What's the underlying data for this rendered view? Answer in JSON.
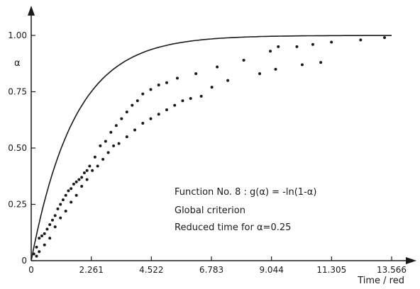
{
  "chart_data": {
    "type": "scatter",
    "title": "",
    "xlabel": "Time / red",
    "ylabel": "α",
    "xlim": [
      0,
      13.566
    ],
    "ylim": [
      0,
      1.0
    ],
    "x_ticks": [
      0,
      2.261,
      4.522,
      6.783,
      9.044,
      11.305,
      13.566
    ],
    "x_tick_labels": [
      "0",
      "2.261",
      "4.522",
      "6.783",
      "9.044",
      "11.305",
      "13.566"
    ],
    "y_ticks": [
      0,
      0.25,
      0.5,
      0.75,
      1.0
    ],
    "y_tick_labels": [
      "0",
      "0.25",
      "0.50",
      "0.75",
      "1.00"
    ],
    "grid": false,
    "annotations": [
      "Function No. 8 : g(α) = -ln(1-α)",
      "Global criterion",
      "Reduced time for α=0.25"
    ],
    "series": [
      {
        "kind": "line",
        "equation": "α = 1 - exp(-k·t), k = ln(4)/2.261"
      },
      {
        "kind": "points",
        "x": [
          0.1,
          0.2,
          0.3,
          0.4,
          0.5,
          0.6,
          0.7,
          0.8,
          0.9,
          1.0,
          1.1,
          1.2,
          1.3,
          1.4,
          1.5,
          1.6,
          1.7,
          1.8,
          1.9,
          2.0,
          2.1,
          2.2,
          2.4,
          2.6,
          2.8,
          3.0,
          3.2,
          3.4,
          3.6,
          3.8,
          4.0,
          4.2,
          4.5,
          4.8,
          5.1,
          5.5,
          6.2,
          7.0,
          8.0,
          9.0,
          9.3,
          10.0,
          10.6,
          11.3,
          12.4,
          13.3
        ],
        "y": [
          0.03,
          0.06,
          0.1,
          0.11,
          0.12,
          0.14,
          0.16,
          0.18,
          0.2,
          0.23,
          0.25,
          0.27,
          0.29,
          0.31,
          0.32,
          0.34,
          0.35,
          0.36,
          0.37,
          0.39,
          0.4,
          0.42,
          0.46,
          0.51,
          0.53,
          0.57,
          0.6,
          0.63,
          0.66,
          0.69,
          0.71,
          0.74,
          0.76,
          0.78,
          0.79,
          0.81,
          0.83,
          0.86,
          0.89,
          0.93,
          0.95,
          0.95,
          0.96,
          0.97,
          0.98,
          0.99
        ]
      },
      {
        "kind": "points",
        "x": [
          0.2,
          0.3,
          0.5,
          0.7,
          0.9,
          1.1,
          1.3,
          1.5,
          1.7,
          1.9,
          2.1,
          2.3,
          2.5,
          2.7,
          2.9,
          3.1,
          3.3,
          3.6,
          3.9,
          4.2,
          4.5,
          4.8,
          5.1,
          5.4,
          5.7,
          6.0,
          6.4,
          6.8,
          7.4,
          8.6,
          9.2,
          10.2,
          10.9
        ],
        "y": [
          0.02,
          0.04,
          0.07,
          0.1,
          0.15,
          0.19,
          0.22,
          0.26,
          0.29,
          0.33,
          0.36,
          0.4,
          0.42,
          0.45,
          0.48,
          0.51,
          0.52,
          0.55,
          0.58,
          0.61,
          0.63,
          0.65,
          0.67,
          0.69,
          0.71,
          0.72,
          0.73,
          0.77,
          0.8,
          0.83,
          0.85,
          0.87,
          0.88
        ]
      }
    ]
  }
}
